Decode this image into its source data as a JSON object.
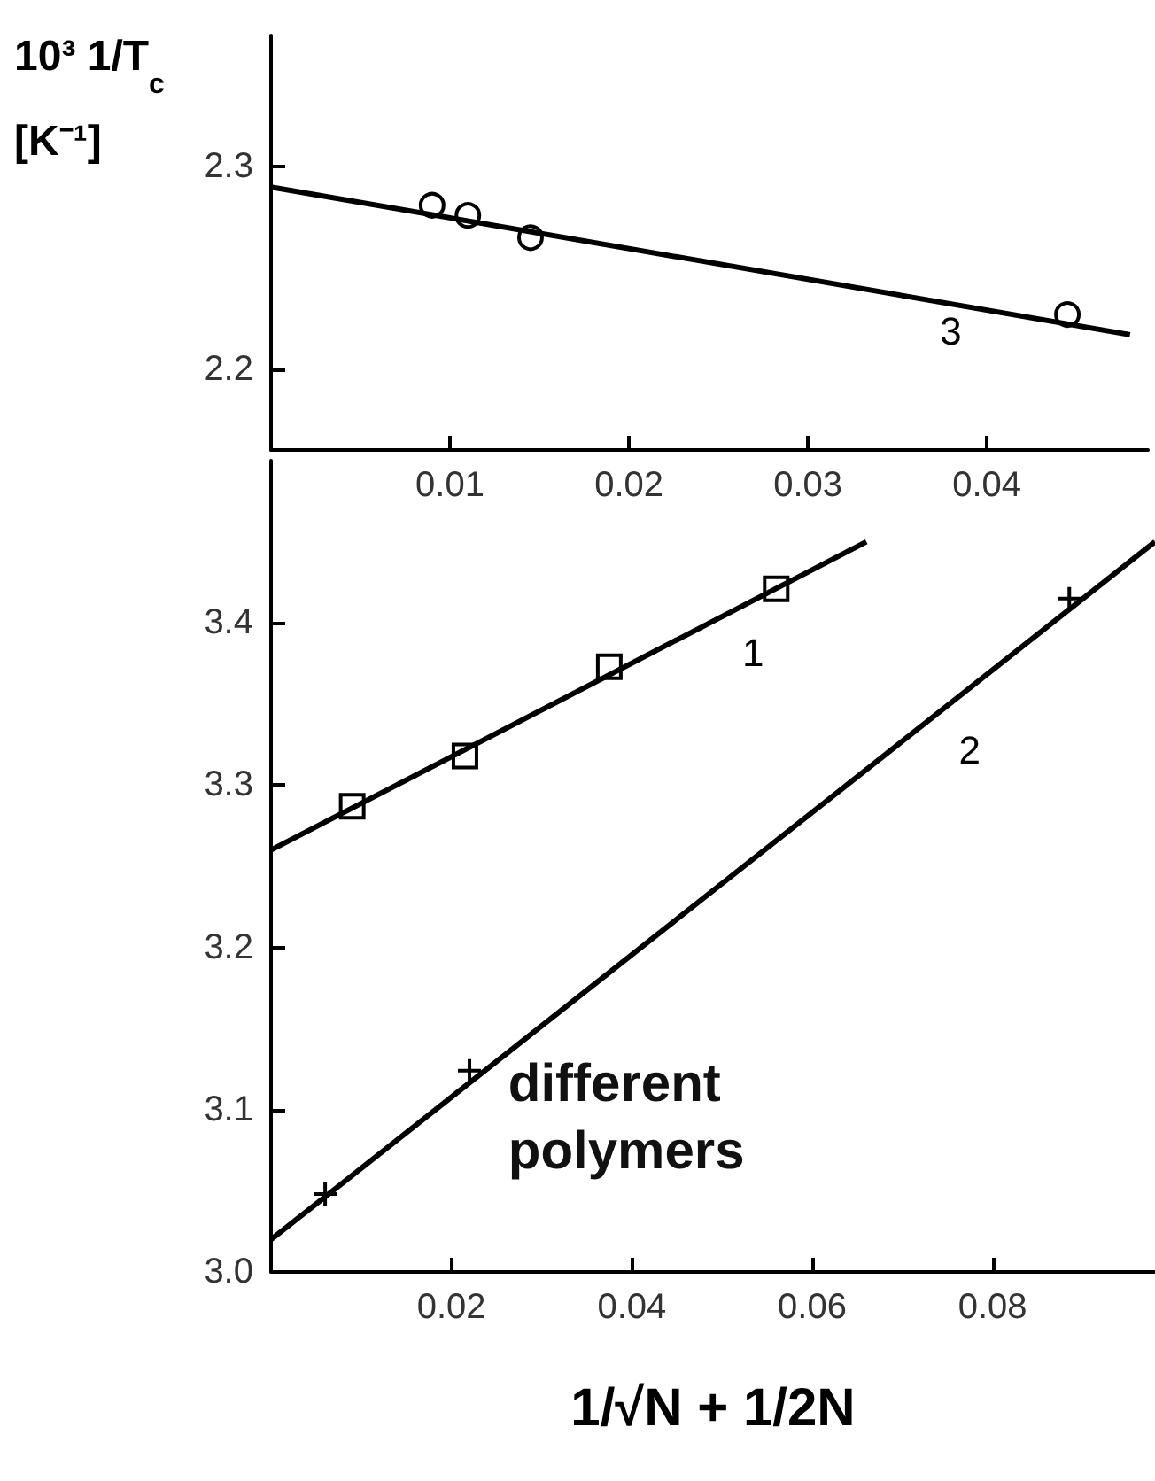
{
  "chart_data": [
    {
      "type": "scatter",
      "ylabel": "10³ 1/T$_{c}$ [K⁻¹]",
      "xlim": [
        0,
        0.049
      ],
      "ylim": [
        2.16,
        2.365
      ],
      "xticks": [
        0.01,
        0.02,
        0.03,
        0.04
      ],
      "yticks": [
        2.2,
        2.3
      ],
      "grid": false,
      "legend": false,
      "series": [
        {
          "marker": "circle",
          "color": "#000000",
          "x": [
            0.009,
            0.011,
            0.0145,
            0.0445
          ],
          "values": [
            2.281,
            2.276,
            2.265,
            2.227
          ]
        },
        {
          "type": "line",
          "name": "3",
          "marker": "none",
          "color": "#000000",
          "x": [
            0,
            0.048
          ],
          "values": [
            2.29,
            2.217
          ]
        }
      ]
    },
    {
      "type": "scatter",
      "xlabel": "1/√N + 1/2N",
      "xlim": [
        0,
        0.098
      ],
      "ylim": [
        3.0,
        3.5
      ],
      "xticks": [
        0.02,
        0.04,
        0.06,
        0.08
      ],
      "yticks": [
        {
          "value": 3.0,
          "label": "3.0"
        },
        3.1,
        3.2,
        3.3,
        3.4
      ],
      "grid": false,
      "legend": false,
      "series": [
        {
          "marker": "square",
          "color": "#000000",
          "x": [
            0.009,
            0.0215,
            0.0375,
            0.056
          ],
          "values": [
            3.287,
            3.318,
            3.373,
            3.421
          ]
        },
        {
          "type": "line",
          "name": "1",
          "marker": "none",
          "color": "#000000",
          "x": [
            0,
            0.066
          ],
          "values": [
            3.26,
            3.45
          ]
        },
        {
          "marker": "cross",
          "color": "#000000",
          "x": [
            0.006,
            0.022,
            0.0885
          ],
          "values": [
            3.048,
            3.124,
            3.415
          ]
        },
        {
          "type": "line",
          "name": "2",
          "marker": "none",
          "color": "#000000",
          "x": [
            0,
            0.098
          ],
          "values": [
            3.02,
            3.45
          ]
        }
      ],
      "annotations": [
        "different\npolymers"
      ]
    }
  ]
}
